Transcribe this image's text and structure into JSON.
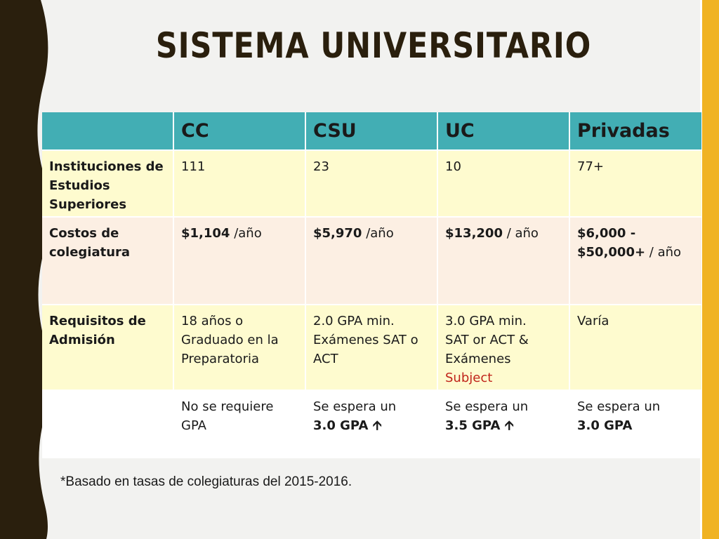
{
  "title": "SISTEMA UNIVERSITARIO",
  "colors": {
    "header_teal": "#42aeb4",
    "accent_gold": "#f0b323",
    "band_dark": "#2a1f0d",
    "row_yellow": "#fefbcf",
    "row_pink": "#fcefe3",
    "highlight_red": "#c0241a"
  },
  "table": {
    "headers": [
      "",
      "CC",
      "CSU",
      "UC",
      "Privadas"
    ],
    "rows": [
      {
        "label": "Instituciones de Estudios Superiores",
        "cells": [
          "111",
          "23",
          "10",
          "77+"
        ]
      },
      {
        "label": "Costos de colegiatura",
        "cells": [
          {
            "amount": "$1,104",
            "unit": " /año"
          },
          {
            "amount": "$5,970",
            "unit": " /año"
          },
          {
            "amount": "$13,200",
            "unit": " / año"
          },
          {
            "amount": "$6,000 - $50,000+",
            "unit": " / año"
          }
        ]
      },
      {
        "label": "Requisitos de Admisión",
        "cells": [
          {
            "lines": [
              "18 años o Graduado en la Preparatoria"
            ]
          },
          {
            "lines": [
              "2.0 GPA min.",
              "Exámenes SAT o ACT"
            ]
          },
          {
            "lines": [
              "3.0 GPA min.",
              "SAT or ACT &"
            ],
            "last_pre": "Exámenes ",
            "last_red": "Subject"
          },
          {
            "lines": [
              "Varía"
            ]
          }
        ]
      },
      {
        "label": "",
        "cells": [
          {
            "line1": "No se requiere GPA",
            "line2": ""
          },
          {
            "line1": "Se espera un",
            "line2": "3.0 GPA",
            "arrow": "🡩"
          },
          {
            "line1": "Se espera un",
            "line2": "3.5 GPA",
            "arrow": "🡩"
          },
          {
            "line1": "Se espera un",
            "line2": "3.0 GPA",
            "arrow": ""
          }
        ]
      }
    ]
  },
  "footnote": "*Basado en tasas de colegiaturas del 2015-2016."
}
